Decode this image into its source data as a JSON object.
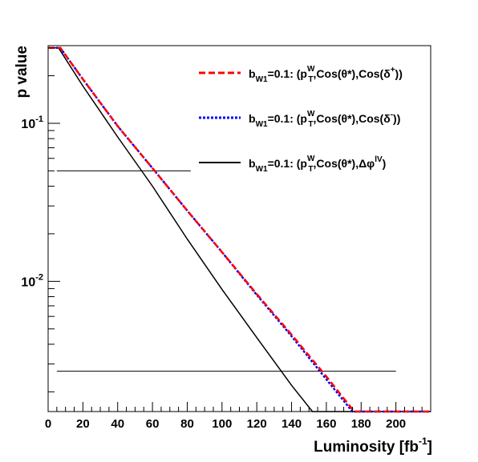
{
  "chart_data": {
    "type": "line",
    "xlabel": "Luminosity [fb",
    "xlabel_sup": "-1",
    "xlabel_close": "]",
    "ylabel": "p value",
    "xlim": [
      0,
      220
    ],
    "ylim": [
      0.0015,
      0.31
    ],
    "yscale": "log",
    "x_ticks": [
      0,
      20,
      40,
      60,
      80,
      100,
      120,
      140,
      160,
      180,
      200
    ],
    "y_tick_labels": [
      {
        "value": 0.1,
        "base": "10",
        "exp": "-1"
      },
      {
        "value": 0.01,
        "base": "10",
        "exp": "-2"
      }
    ],
    "legend_position": "top-right",
    "reference_lines": [
      {
        "y": 0.05,
        "x_start": 5,
        "x_end": 82
      },
      {
        "y": 0.0027,
        "x_start": 5,
        "x_end": 200
      }
    ],
    "series": [
      {
        "name": "b_W1=0.1: (p_T^W, Cos(θ*), Cos(δ+))",
        "label_parts": {
          "pre": "b",
          "sub1": "W1",
          "mid": "=0.1: (p",
          "sup2": "W",
          "sub2": "T",
          "post": ",Cos(θ*),Cos(δ",
          "sup3": "+",
          "end": "))"
        },
        "color": "#ff0000",
        "style": "dashed",
        "x": [
          0,
          7,
          20,
          40,
          60,
          80,
          100,
          120,
          140,
          160,
          176,
          180,
          200,
          220
        ],
        "y": [
          0.3,
          0.3,
          0.19,
          0.096,
          0.052,
          0.028,
          0.0153,
          0.0083,
          0.0046,
          0.0025,
          0.0015,
          0.0015,
          0.0015,
          0.0015
        ]
      },
      {
        "name": "b_W1=0.1: (p_T^W, Cos(θ*), Cos(δ-))",
        "label_parts": {
          "pre": "b",
          "sub1": "W1",
          "mid": "=0.1: (p",
          "sup2": "W",
          "sub2": "T",
          "post": ",Cos(θ*),Cos(δ",
          "sup3": "-",
          "end": "))"
        },
        "color": "#0000ff",
        "style": "dotted",
        "x": [
          0,
          7,
          20,
          40,
          60,
          80,
          100,
          120,
          140,
          160,
          175,
          180,
          200,
          220
        ],
        "y": [
          0.3,
          0.3,
          0.19,
          0.096,
          0.052,
          0.028,
          0.0153,
          0.0082,
          0.0045,
          0.0024,
          0.0015,
          0.0015,
          0.0015,
          0.0015
        ]
      },
      {
        "name": "b_W1=0.1: (p_T^W, Cos(θ*), Δφ^lV)",
        "label_parts": {
          "pre": "b",
          "sub1": "W1",
          "mid": "=0.1: (p",
          "sup2": "W",
          "sub2": "T",
          "post": ",Cos(θ*),Δφ",
          "sup3": "lV",
          "end": ")"
        },
        "color": "#000000",
        "style": "solid",
        "x": [
          0,
          6,
          20,
          40,
          60,
          80,
          100,
          120,
          140,
          152,
          160,
          180,
          200,
          220
        ],
        "y": [
          0.3,
          0.3,
          0.172,
          0.082,
          0.04,
          0.0185,
          0.0089,
          0.0044,
          0.0022,
          0.0015,
          0.0015,
          0.0015,
          0.0015,
          0.0015
        ]
      }
    ]
  }
}
